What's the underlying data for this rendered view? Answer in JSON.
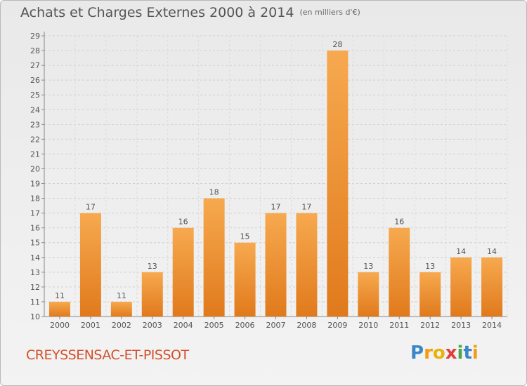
{
  "title": "Achats et Charges Externes 2000 à 2014",
  "subtitle": "(en milliers d'€)",
  "commune": "CREYSSENSAC-ET-PISSOT",
  "logo_text": "Proxiti",
  "colors": {
    "bar_top": "#f7a94f",
    "bar_bottom": "#e07a1c",
    "commune": "#d2502a"
  },
  "chart_data": {
    "type": "bar",
    "title": "Achats et Charges Externes 2000 à 2014",
    "subtitle": "(en milliers d'€)",
    "xlabel": "",
    "ylabel": "",
    "categories": [
      "2000",
      "2001",
      "2002",
      "2003",
      "2004",
      "2005",
      "2006",
      "2007",
      "2008",
      "2009",
      "2010",
      "2011",
      "2012",
      "2013",
      "2014"
    ],
    "values": [
      11,
      17,
      11,
      13,
      16,
      18,
      15,
      17,
      17,
      28,
      13,
      16,
      13,
      14,
      14
    ],
    "ylim": [
      10,
      29
    ],
    "yticks": [
      10,
      11,
      12,
      13,
      14,
      15,
      16,
      17,
      18,
      19,
      20,
      21,
      22,
      23,
      24,
      25,
      26,
      27,
      28,
      29
    ],
    "grid": "horizontal dashed",
    "data_labels": true
  }
}
